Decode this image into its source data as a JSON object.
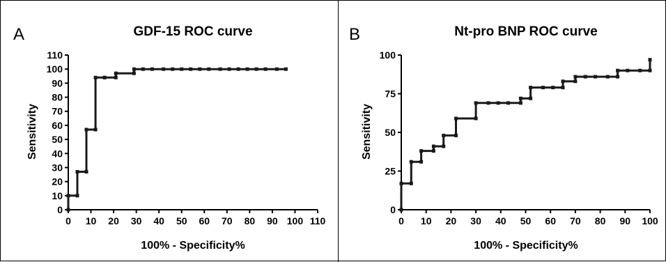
{
  "chart_data": [
    {
      "type": "line",
      "panel": "A",
      "title": "GDF-15 ROC curve",
      "xlabel": "100% - Specificity%",
      "ylabel": "Sensitivity",
      "xlim": [
        0,
        110
      ],
      "ylim": [
        0,
        110
      ],
      "xticks": [
        0,
        10,
        20,
        30,
        40,
        50,
        60,
        70,
        80,
        90,
        100,
        110
      ],
      "yticks": [
        0,
        10,
        20,
        30,
        40,
        50,
        60,
        70,
        80,
        90,
        100,
        110
      ],
      "grid": false,
      "series": [
        {
          "x": [
            0,
            0,
            4,
            4,
            8,
            8,
            12,
            12,
            16,
            16,
            21,
            21,
            29,
            29,
            33,
            37,
            42,
            46,
            50,
            54,
            58,
            62,
            67,
            71,
            75,
            79,
            83,
            87,
            92,
            96
          ],
          "y": [
            0,
            10,
            10,
            27,
            27,
            57,
            57,
            94,
            94,
            94,
            94,
            97,
            97,
            100,
            100,
            100,
            100,
            100,
            100,
            100,
            100,
            100,
            100,
            100,
            100,
            100,
            100,
            100,
            100,
            100
          ]
        }
      ]
    },
    {
      "type": "line",
      "panel": "B",
      "title": "Nt-pro BNP ROC curve",
      "xlabel": "100% - Specificity%",
      "ylabel": "Sensitivity",
      "xlim": [
        0,
        100
      ],
      "ylim": [
        0,
        100
      ],
      "xticks": [
        0,
        10,
        20,
        30,
        40,
        50,
        60,
        70,
        80,
        90,
        100
      ],
      "yticks": [
        0,
        25,
        50,
        75,
        100
      ],
      "grid": false,
      "series": [
        {
          "x": [
            0,
            0,
            4,
            4,
            8,
            8,
            13,
            13,
            17,
            17,
            22,
            22,
            30,
            30,
            35,
            39,
            43,
            48,
            48,
            52,
            52,
            57,
            61,
            65,
            65,
            70,
            70,
            74,
            78,
            83,
            87,
            87,
            91,
            96,
            100,
            100
          ],
          "y": [
            0,
            17,
            17,
            31,
            31,
            38,
            38,
            41,
            41,
            48,
            48,
            59,
            59,
            69,
            69,
            69,
            69,
            69,
            72,
            72,
            79,
            79,
            79,
            79,
            83,
            83,
            86,
            86,
            86,
            86,
            86,
            90,
            90,
            90,
            90,
            97
          ]
        }
      ]
    }
  ]
}
